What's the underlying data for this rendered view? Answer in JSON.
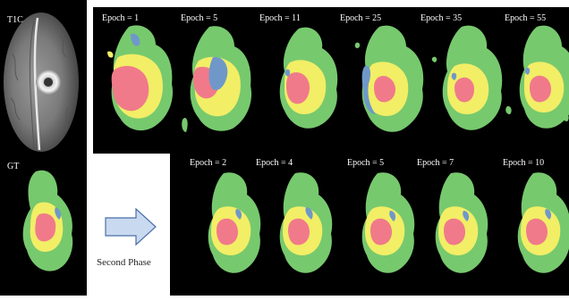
{
  "left": {
    "t1c_label": "T1C",
    "gt_label": "GT"
  },
  "first_phase": {
    "epochs": [
      "Epoch = 1",
      "Epoch = 5",
      "Epoch = 11",
      "Epoch = 25",
      "Epoch = 35",
      "Epoch = 55"
    ]
  },
  "second_phase": {
    "label": "Second Phase",
    "epochs": [
      "Epoch = 2",
      "Epoch = 4",
      "Epoch = 5",
      "Epoch = 7",
      "Epoch = 10"
    ]
  },
  "colors": {
    "edema": "#77c96e",
    "enhancing": "#f2ee66",
    "necrosis": "#f07a8a",
    "non_enhancing": "#6f98c9",
    "background": "#000000",
    "arrow_fill": "#c9d9ef",
    "arrow_stroke": "#4b6fa8"
  }
}
